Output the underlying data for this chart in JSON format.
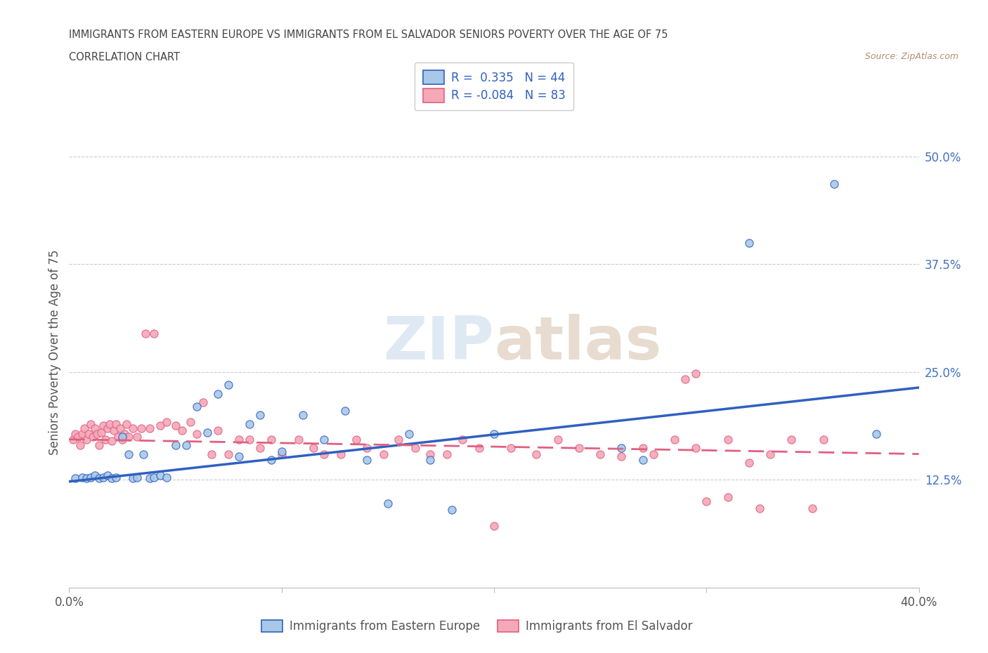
{
  "title": "IMMIGRANTS FROM EASTERN EUROPE VS IMMIGRANTS FROM EL SALVADOR SENIORS POVERTY OVER THE AGE OF 75",
  "subtitle": "CORRELATION CHART",
  "source": "Source: ZipAtlas.com",
  "ylabel": "Seniors Poverty Over the Age of 75",
  "watermark": "ZIPatlas",
  "xlim": [
    0.0,
    0.4
  ],
  "ylim": [
    0.0,
    0.545
  ],
  "xticks": [
    0.0,
    0.1,
    0.2,
    0.3,
    0.4
  ],
  "xticklabels": [
    "0.0%",
    "",
    "",
    "",
    "40.0%"
  ],
  "yticks": [
    0.125,
    0.25,
    0.375,
    0.5
  ],
  "yticklabels": [
    "12.5%",
    "25.0%",
    "37.5%",
    "50.0%"
  ],
  "series1_color": "#a8c8e8",
  "series2_color": "#f4a8b8",
  "series1_line_color": "#3060c0",
  "series2_line_color": "#e06080",
  "series1_label": "Immigrants from Eastern Europe",
  "series2_label": "Immigrants from El Salvador",
  "R1": 0.335,
  "N1": 44,
  "R2": -0.084,
  "N2": 83,
  "trend1_x0": 0.0,
  "trend1_y0": 0.123,
  "trend1_x1": 0.4,
  "trend1_y1": 0.232,
  "trend2_x0": 0.0,
  "trend2_y0": 0.172,
  "trend2_x1": 0.4,
  "trend2_y1": 0.155,
  "series1_x": [
    0.003,
    0.006,
    0.008,
    0.01,
    0.012,
    0.014,
    0.016,
    0.018,
    0.02,
    0.022,
    0.025,
    0.028,
    0.03,
    0.032,
    0.035,
    0.038,
    0.04,
    0.043,
    0.046,
    0.05,
    0.055,
    0.06,
    0.065,
    0.07,
    0.075,
    0.08,
    0.085,
    0.09,
    0.095,
    0.1,
    0.11,
    0.12,
    0.13,
    0.14,
    0.15,
    0.16,
    0.17,
    0.18,
    0.2,
    0.26,
    0.27,
    0.32,
    0.36,
    0.38
  ],
  "series1_y": [
    0.127,
    0.128,
    0.127,
    0.128,
    0.13,
    0.127,
    0.128,
    0.13,
    0.127,
    0.128,
    0.175,
    0.155,
    0.127,
    0.128,
    0.155,
    0.127,
    0.128,
    0.13,
    0.128,
    0.165,
    0.165,
    0.21,
    0.18,
    0.225,
    0.235,
    0.152,
    0.19,
    0.2,
    0.148,
    0.158,
    0.2,
    0.172,
    0.205,
    0.148,
    0.098,
    0.178,
    0.148,
    0.09,
    0.178,
    0.162,
    0.148,
    0.4,
    0.468,
    0.178
  ],
  "series2_x": [
    0.002,
    0.003,
    0.004,
    0.005,
    0.006,
    0.007,
    0.008,
    0.009,
    0.01,
    0.011,
    0.012,
    0.013,
    0.014,
    0.015,
    0.016,
    0.017,
    0.018,
    0.019,
    0.02,
    0.021,
    0.022,
    0.023,
    0.024,
    0.025,
    0.026,
    0.027,
    0.028,
    0.03,
    0.032,
    0.034,
    0.036,
    0.038,
    0.04,
    0.043,
    0.046,
    0.05,
    0.053,
    0.057,
    0.06,
    0.063,
    0.067,
    0.07,
    0.075,
    0.08,
    0.085,
    0.09,
    0.095,
    0.1,
    0.108,
    0.115,
    0.12,
    0.128,
    0.135,
    0.14,
    0.148,
    0.155,
    0.163,
    0.17,
    0.178,
    0.185,
    0.193,
    0.2,
    0.208,
    0.22,
    0.23,
    0.24,
    0.25,
    0.26,
    0.27,
    0.275,
    0.285,
    0.295,
    0.3,
    0.31,
    0.32,
    0.33,
    0.34,
    0.35,
    0.355,
    0.31,
    0.325,
    0.295,
    0.29
  ],
  "series2_y": [
    0.172,
    0.178,
    0.175,
    0.165,
    0.178,
    0.185,
    0.172,
    0.178,
    0.19,
    0.175,
    0.185,
    0.178,
    0.165,
    0.18,
    0.188,
    0.172,
    0.185,
    0.19,
    0.17,
    0.182,
    0.19,
    0.175,
    0.185,
    0.172,
    0.178,
    0.19,
    0.175,
    0.185,
    0.175,
    0.185,
    0.295,
    0.185,
    0.295,
    0.188,
    0.192,
    0.188,
    0.182,
    0.192,
    0.178,
    0.215,
    0.155,
    0.182,
    0.155,
    0.172,
    0.172,
    0.162,
    0.172,
    0.155,
    0.172,
    0.162,
    0.155,
    0.155,
    0.172,
    0.162,
    0.155,
    0.172,
    0.162,
    0.155,
    0.155,
    0.172,
    0.162,
    0.072,
    0.162,
    0.155,
    0.172,
    0.162,
    0.155,
    0.152,
    0.162,
    0.155,
    0.172,
    0.162,
    0.1,
    0.172,
    0.145,
    0.155,
    0.172,
    0.092,
    0.172,
    0.105,
    0.092,
    0.248,
    0.242
  ],
  "background_color": "#ffffff",
  "grid_color": "#cccccc",
  "title_color": "#444444",
  "axis_label_color": "#4472c4",
  "tick_label_color": "#555555"
}
